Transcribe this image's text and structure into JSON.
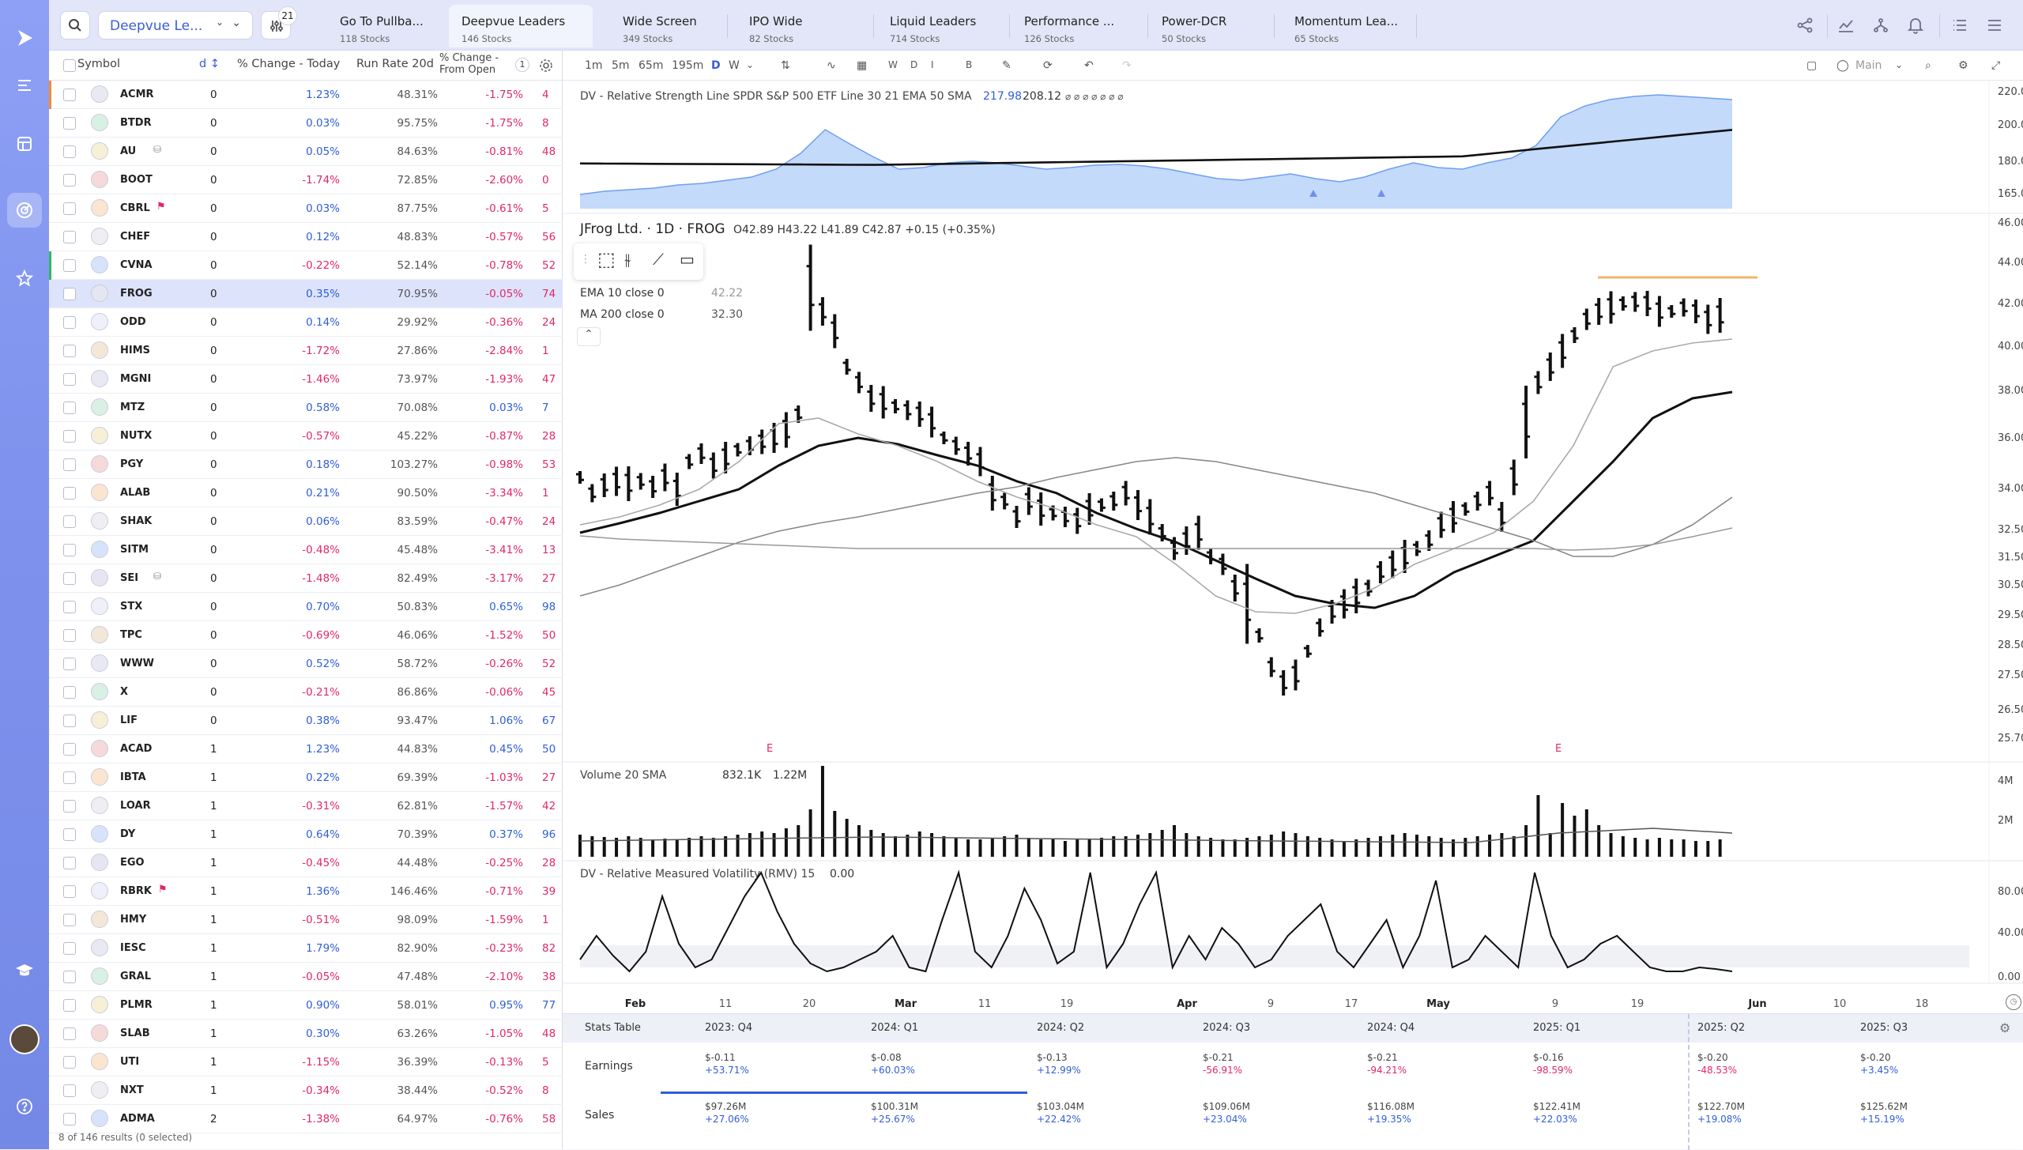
{
  "app": {
    "logo_icon": "play-logo-icon"
  },
  "toolbar": {
    "watchlist_select": "Deepvue Le...",
    "filter_badge": "21"
  },
  "tabs": [
    {
      "label": "Go To Pullba...",
      "sub": "118 Stocks"
    },
    {
      "label": "Deepvue Leaders",
      "sub": "146 Stocks"
    },
    {
      "label": "Wide Screen",
      "sub": "349 Stocks"
    },
    {
      "label": "IPO Wide",
      "sub": "82 Stocks"
    },
    {
      "label": "Liquid Leaders",
      "sub": "714 Stocks"
    },
    {
      "label": "Performance ...",
      "sub": "126 Stocks"
    },
    {
      "label": "Power-DCR",
      "sub": "50 Stocks"
    },
    {
      "label": "Momentum Lea...",
      "sub": "65 Stocks"
    }
  ],
  "table": {
    "headers": {
      "symbol": "Symbol",
      "d": "d",
      "change_today": "% Change - Today",
      "run_rate": "Run Rate 20d",
      "change_open_1": "% Change -",
      "change_open_2": "From Open",
      "page": "1"
    },
    "rows": [
      [
        "ACMR",
        "0",
        "1.23%",
        "48.31%",
        "-1.75%",
        "4"
      ],
      [
        "BTDR",
        "0",
        "0.03%",
        "95.75%",
        "-1.75%",
        "8"
      ],
      [
        "AU",
        "0",
        "0.05%",
        "84.63%",
        "-0.81%",
        "48"
      ],
      [
        "BOOT",
        "0",
        "-1.74%",
        "72.85%",
        "-2.60%",
        "0"
      ],
      [
        "CBRL",
        "0",
        "0.03%",
        "87.75%",
        "-0.61%",
        "5"
      ],
      [
        "CHEF",
        "0",
        "0.12%",
        "48.83%",
        "-0.57%",
        "56"
      ],
      [
        "CVNA",
        "0",
        "-0.22%",
        "52.14%",
        "-0.78%",
        "52"
      ],
      [
        "FROG",
        "0",
        "0.35%",
        "70.95%",
        "-0.05%",
        "74"
      ],
      [
        "ODD",
        "0",
        "0.14%",
        "29.92%",
        "-0.36%",
        "24"
      ],
      [
        "HIMS",
        "0",
        "-1.72%",
        "27.86%",
        "-2.84%",
        "1"
      ],
      [
        "MGNI",
        "0",
        "-1.46%",
        "73.97%",
        "-1.93%",
        "47"
      ],
      [
        "MTZ",
        "0",
        "0.58%",
        "70.08%",
        "0.03%",
        "7"
      ],
      [
        "NUTX",
        "0",
        "-0.57%",
        "45.22%",
        "-0.87%",
        "28"
      ],
      [
        "PGY",
        "0",
        "0.18%",
        "103.27%",
        "-0.98%",
        "53"
      ],
      [
        "ALAB",
        "0",
        "0.21%",
        "90.50%",
        "-3.34%",
        "1"
      ],
      [
        "SHAK",
        "0",
        "0.06%",
        "83.59%",
        "-0.47%",
        "24"
      ],
      [
        "SITM",
        "0",
        "-0.48%",
        "45.48%",
        "-3.41%",
        "13"
      ],
      [
        "SEI",
        "0",
        "-1.48%",
        "82.49%",
        "-3.17%",
        "27"
      ],
      [
        "STX",
        "0",
        "0.70%",
        "50.83%",
        "0.65%",
        "98"
      ],
      [
        "TPC",
        "0",
        "-0.69%",
        "46.06%",
        "-1.52%",
        "50"
      ],
      [
        "WWW",
        "0",
        "0.52%",
        "58.72%",
        "-0.26%",
        "52"
      ],
      [
        "X",
        "0",
        "-0.21%",
        "86.86%",
        "-0.06%",
        "45"
      ],
      [
        "LIF",
        "0",
        "0.38%",
        "93.47%",
        "1.06%",
        "67"
      ],
      [
        "ACAD",
        "1",
        "1.23%",
        "44.83%",
        "0.45%",
        "50"
      ],
      [
        "IBTA",
        "1",
        "0.22%",
        "69.39%",
        "-1.03%",
        "27"
      ],
      [
        "LOAR",
        "1",
        "-0.31%",
        "62.81%",
        "-1.57%",
        "42"
      ],
      [
        "DY",
        "1",
        "0.64%",
        "70.39%",
        "0.37%",
        "96"
      ],
      [
        "EGO",
        "1",
        "-0.45%",
        "44.48%",
        "-0.25%",
        "28"
      ],
      [
        "RBRK",
        "1",
        "1.36%",
        "146.46%",
        "-0.71%",
        "39"
      ],
      [
        "HMY",
        "1",
        "-0.51%",
        "98.09%",
        "-1.59%",
        "1"
      ],
      [
        "IESC",
        "1",
        "1.79%",
        "82.90%",
        "-0.23%",
        "82"
      ],
      [
        "GRAL",
        "1",
        "-0.05%",
        "47.48%",
        "-2.10%",
        "38"
      ],
      [
        "PLMR",
        "1",
        "0.90%",
        "58.01%",
        "0.95%",
        "77"
      ],
      [
        "SLAB",
        "1",
        "0.30%",
        "63.26%",
        "-1.05%",
        "48"
      ],
      [
        "UTI",
        "1",
        "-1.15%",
        "36.39%",
        "-0.13%",
        "5"
      ],
      [
        "NXT",
        "1",
        "-0.34%",
        "38.44%",
        "-0.52%",
        "8"
      ],
      [
        "ADMA",
        "2",
        "-1.38%",
        "64.97%",
        "-0.76%",
        "58"
      ]
    ],
    "footer": "8 of 146 results (0 selected)"
  },
  "chart_toolbar": {
    "intervals": [
      "1m",
      "5m",
      "65m",
      "195m",
      "D",
      "W"
    ],
    "ranges": [
      "W",
      "D",
      "I",
      "B"
    ],
    "layout": "Main"
  },
  "chart": {
    "rs_title": "DV - Relative Strength Line SPDR S&P 500 ETF Line 30 21 EMA 50 SMA",
    "rs_value1": "217.98",
    "rs_value2": "208.12",
    "rs_extra": "⌀ ⌀ ⌀ ⌀ ⌀ ⌀ ⌀",
    "rs_ticks": [
      "220.00",
      "200.00",
      "180.00",
      "165.00"
    ],
    "title": "JFrog Ltd. · 1D · FROG",
    "ohlc": "O42.89  H43.22  L41.89  C42.87  +0.15 (+0.35%)",
    "ema10": "EMA 10 close 0",
    "ema10_val": "42.22",
    "ma200": "MA 200 close 0",
    "ma200_val": "32.30",
    "price_ticks": [
      "46.00",
      "44.00",
      "42.00",
      "40.00",
      "38.00",
      "36.00",
      "34.00",
      "32.50",
      "31.50",
      "30.50",
      "29.50",
      "28.50",
      "27.50",
      "26.50",
      "25.70"
    ],
    "volume_title": "Volume 20 SMA",
    "volume_v1": "832.1K",
    "volume_v2": "1.22M",
    "volume_ticks": [
      "4M",
      "2M"
    ],
    "rmv_title": "DV - Relative Measured Volatility (RMV) 15",
    "rmv_value": "0.00",
    "rmv_ticks": [
      "80.00",
      "40.00",
      "0.00"
    ],
    "x_ticks": [
      "Feb",
      "11",
      "20",
      "Mar",
      "11",
      "19",
      "Apr",
      "9",
      "17",
      "May",
      "9",
      "19",
      "Jun",
      "10",
      "18"
    ],
    "earnings_marks": [
      "E",
      "E"
    ]
  },
  "stats": {
    "title": "Stats Table",
    "columns": [
      "2023: Q4",
      "2024: Q1",
      "2024: Q2",
      "2024: Q3",
      "2024: Q4",
      "2025: Q1",
      "2025: Q2",
      "2025: Q3"
    ],
    "rows": [
      {
        "label": "Earnings",
        "values": [
          "$-0.11",
          "$-0.08",
          "$-0.13",
          "$-0.21",
          "$-0.21",
          "$-0.16",
          "$-0.20",
          "$-0.20"
        ],
        "changes": [
          "+53.71%",
          "+60.03%",
          "+12.99%",
          "-56.91%",
          "-94.21%",
          "-98.59%",
          "-48.53%",
          "+3.45%"
        ]
      },
      {
        "label": "Sales",
        "values": [
          "$97.26M",
          "$100.31M",
          "$103.04M",
          "$109.06M",
          "$116.08M",
          "$122.41M",
          "$122.70M",
          "$125.62M"
        ],
        "changes": [
          "+27.06%",
          "+25.67%",
          "+22.42%",
          "+23.04%",
          "+19.35%",
          "+22.03%",
          "+19.08%",
          "+15.19%"
        ]
      }
    ]
  }
}
